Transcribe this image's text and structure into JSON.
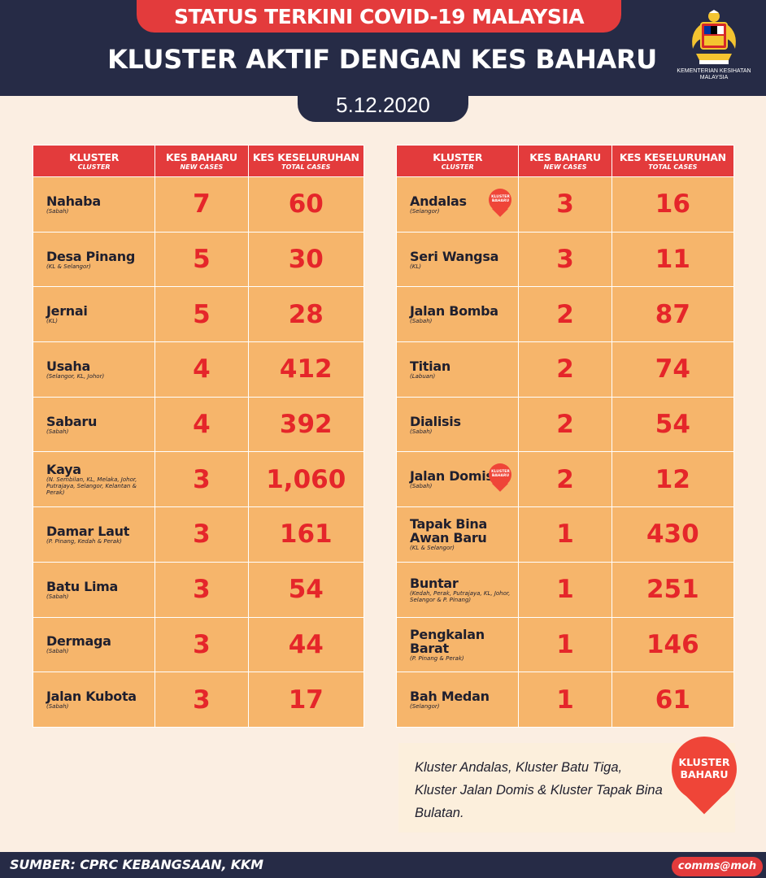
{
  "header": {
    "status_title": "STATUS TERKINI COVID-19 MALAYSIA",
    "main_title": "KLUSTER AKTIF DENGAN KES BAHARU",
    "date": "5.12.2020",
    "ministry": "KEMENTERIAN KESIHATAN MALAYSIA"
  },
  "columns": {
    "cluster": "KLUSTER",
    "cluster_en": "CLUSTER",
    "new": "KES BAHARU",
    "new_en": "NEW CASES",
    "total": "KES KESELURUHAN",
    "total_en": "TOTAL CASES"
  },
  "left_table": [
    {
      "name": "Nahaba",
      "location": "(Sabah)",
      "new_cases": "7",
      "total_cases": "60"
    },
    {
      "name": "Desa Pinang",
      "location": "(KL & Selangor)",
      "new_cases": "5",
      "total_cases": "30"
    },
    {
      "name": "Jernai",
      "location": "(KL)",
      "new_cases": "5",
      "total_cases": "28"
    },
    {
      "name": "Usaha",
      "location": "(Selangor, KL, Johor)",
      "new_cases": "4",
      "total_cases": "412"
    },
    {
      "name": "Sabaru",
      "location": "(Sabah)",
      "new_cases": "4",
      "total_cases": "392"
    },
    {
      "name": "Kaya",
      "location": "(N. Sembilan, KL, Melaka, Johor, Putrajaya, Selangor, Kelantan & Perak)",
      "new_cases": "3",
      "total_cases": "1,060"
    },
    {
      "name": "Damar Laut",
      "location": "(P. Pinang, Kedah & Perak)",
      "new_cases": "3",
      "total_cases": "161"
    },
    {
      "name": "Batu Lima",
      "location": "(Sabah)",
      "new_cases": "3",
      "total_cases": "54"
    },
    {
      "name": "Dermaga",
      "location": "(Sabah)",
      "new_cases": "3",
      "total_cases": "44"
    },
    {
      "name": "Jalan Kubota",
      "location": "(Sabah)",
      "new_cases": "3",
      "total_cases": "17"
    }
  ],
  "right_table": [
    {
      "name": "Andalas",
      "location": "(Selangor)",
      "new_cases": "3",
      "total_cases": "16",
      "new_cluster": true
    },
    {
      "name": "Seri Wangsa",
      "location": "(KL)",
      "new_cases": "3",
      "total_cases": "11"
    },
    {
      "name": "Jalan Bomba",
      "location": "(Sabah)",
      "new_cases": "2",
      "total_cases": "87"
    },
    {
      "name": "Titian",
      "location": "(Labuan)",
      "new_cases": "2",
      "total_cases": "74"
    },
    {
      "name": "Dialisis",
      "location": "(Sabah)",
      "new_cases": "2",
      "total_cases": "54"
    },
    {
      "name": "Jalan Domis",
      "location": "(Sabah)",
      "new_cases": "2",
      "total_cases": "12",
      "new_cluster": true
    },
    {
      "name": "Tapak Bina Awan Baru",
      "location": "(KL & Selangor)",
      "new_cases": "1",
      "total_cases": "430"
    },
    {
      "name": "Buntar",
      "location": "(Kedah, Perak, Putrajaya, KL, Johor, Selangor & P. Pinang)",
      "new_cases": "1",
      "total_cases": "251"
    },
    {
      "name": "Pengkalan Barat",
      "location": "(P. Pinang & Perak)",
      "new_cases": "1",
      "total_cases": "146"
    },
    {
      "name": "Bah Medan",
      "location": "(Selangor)",
      "new_cases": "1",
      "total_cases": "61"
    }
  ],
  "badge": {
    "line1": "KLUSTER",
    "line2": "BAHARU"
  },
  "note": "Kluster Andalas, Kluster Batu Tiga, Kluster Jalan Domis & Kluster Tapak Bina Bulatan.",
  "footer": {
    "source": "SUMBER: CPRC KEBANGSAAN, KKM",
    "handle": "comms@moh"
  },
  "colors": {
    "navy": "#262b46",
    "red": "#e33b3c",
    "cell": "#f6b56b",
    "number": "#e5262a",
    "background": "#fbeee2"
  }
}
